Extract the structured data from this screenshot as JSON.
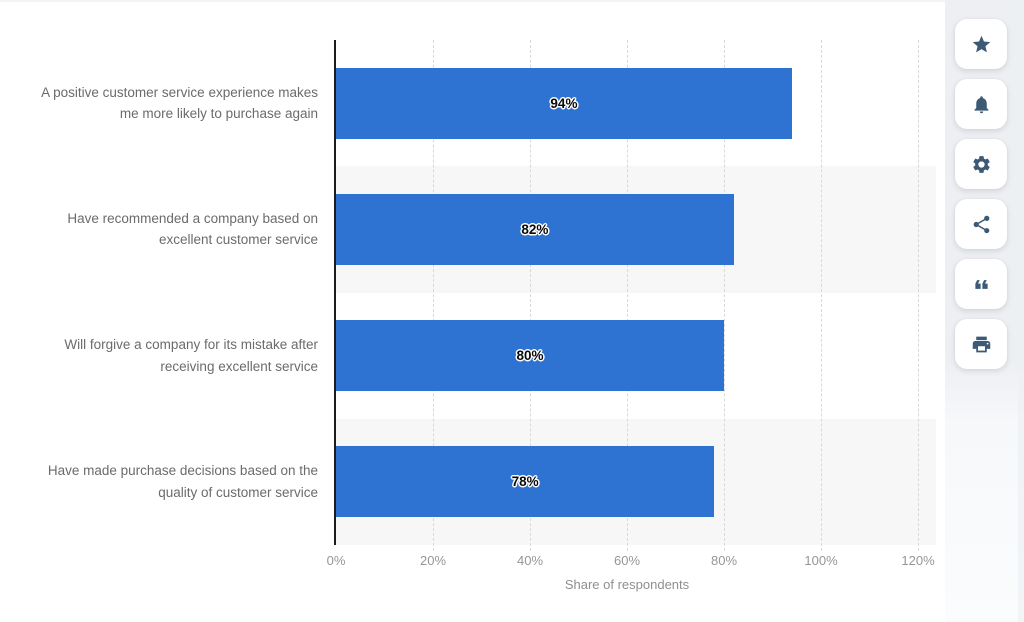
{
  "chart_data": {
    "type": "bar",
    "orientation": "horizontal",
    "categories": [
      "A positive customer service experience makes me more likely to purchase again",
      "Have recommended a company based on excellent customer service",
      "Will forgive a company for its mistake after receiving excellent service",
      "Have made purchase decisions based on the quality of customer service"
    ],
    "values": [
      94,
      82,
      80,
      78
    ],
    "value_labels": [
      "94%",
      "82%",
      "80%",
      "78%"
    ],
    "xlabel": "Share of respondents",
    "x_ticks": [
      "0%",
      "20%",
      "40%",
      "60%",
      "80%",
      "100%",
      "120%"
    ],
    "xlim": [
      0,
      120
    ],
    "grid": "vertical-dashed",
    "legend": "none",
    "bar_color": "#2e73d1",
    "band_color": "#f7f7f8"
  },
  "toolbar": {
    "buttons": [
      {
        "name": "favorite",
        "icon": "star-icon"
      },
      {
        "name": "notifications",
        "icon": "bell-icon"
      },
      {
        "name": "settings",
        "icon": "gear-icon"
      },
      {
        "name": "share",
        "icon": "share-icon"
      },
      {
        "name": "cite",
        "icon": "quote-icon"
      },
      {
        "name": "print",
        "icon": "printer-icon"
      }
    ]
  }
}
